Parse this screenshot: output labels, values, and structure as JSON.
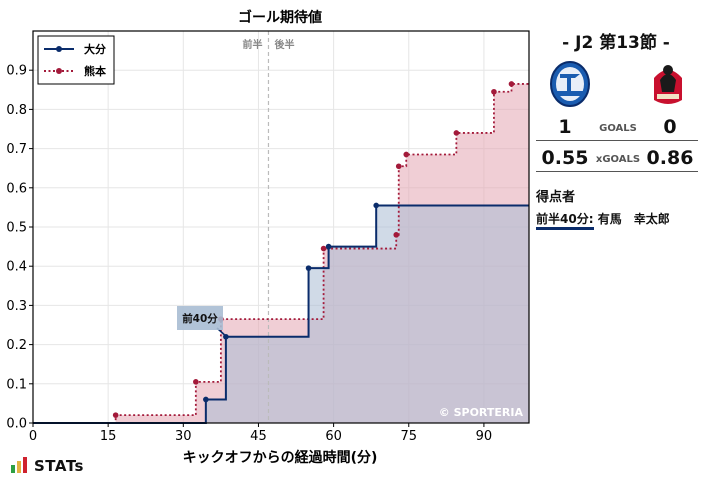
{
  "chart_data": {
    "type": "line",
    "title": "ゴール期待値",
    "xlabel": "キックオフからの経過時間(分)",
    "ylabel": "",
    "xlim": [
      0,
      99
    ],
    "ylim": [
      0,
      1.0
    ],
    "xticks": [
      0,
      15,
      30,
      45,
      60,
      75,
      90
    ],
    "yticks": [
      0.0,
      0.1,
      0.2,
      0.3,
      0.4,
      0.5,
      0.6,
      0.7,
      0.8,
      0.9
    ],
    "half_line_x": 47,
    "half_labels": [
      "前半",
      "後半"
    ],
    "watermark": "© SPORTERIA",
    "legend_position": "top-left",
    "series": [
      {
        "name": "大分",
        "color": "#0a2c6b",
        "fill": "#a9bcd3",
        "style": "solid",
        "x": [
          0,
          34.5,
          38.5,
          55,
          59,
          68.5,
          99
        ],
        "y": [
          0,
          0.06,
          0.22,
          0.395,
          0.45,
          0.555,
          0.555
        ]
      },
      {
        "name": "熊本",
        "color": "#a31a3a",
        "fill": "#e4a5b2",
        "style": "dotted",
        "x": [
          0,
          16.5,
          32.5,
          37.5,
          58,
          72.5,
          73,
          74.5,
          84.5,
          92,
          95.5,
          99
        ],
        "y": [
          0,
          0.02,
          0.105,
          0.265,
          0.445,
          0.48,
          0.655,
          0.685,
          0.74,
          0.845,
          0.865,
          0.865
        ]
      }
    ],
    "annotations": [
      {
        "label": "前40分",
        "x": 39,
        "y": 0.22
      }
    ]
  },
  "match": {
    "title": "- J2 第13節 -",
    "home_team_color": "#1a5cb0",
    "away_team_color": "#c8102e"
  },
  "stats": {
    "goals_home": "1",
    "goals_label": "GOALS",
    "goals_away": "0",
    "xg_home": "0.55",
    "xg_label": "xGOALS",
    "xg_away": "0.86"
  },
  "scorers": {
    "heading": "得点者",
    "items": [
      {
        "time": "前半40分:",
        "player": "有馬　幸太郎"
      }
    ]
  },
  "brand": {
    "name": "STATs"
  }
}
